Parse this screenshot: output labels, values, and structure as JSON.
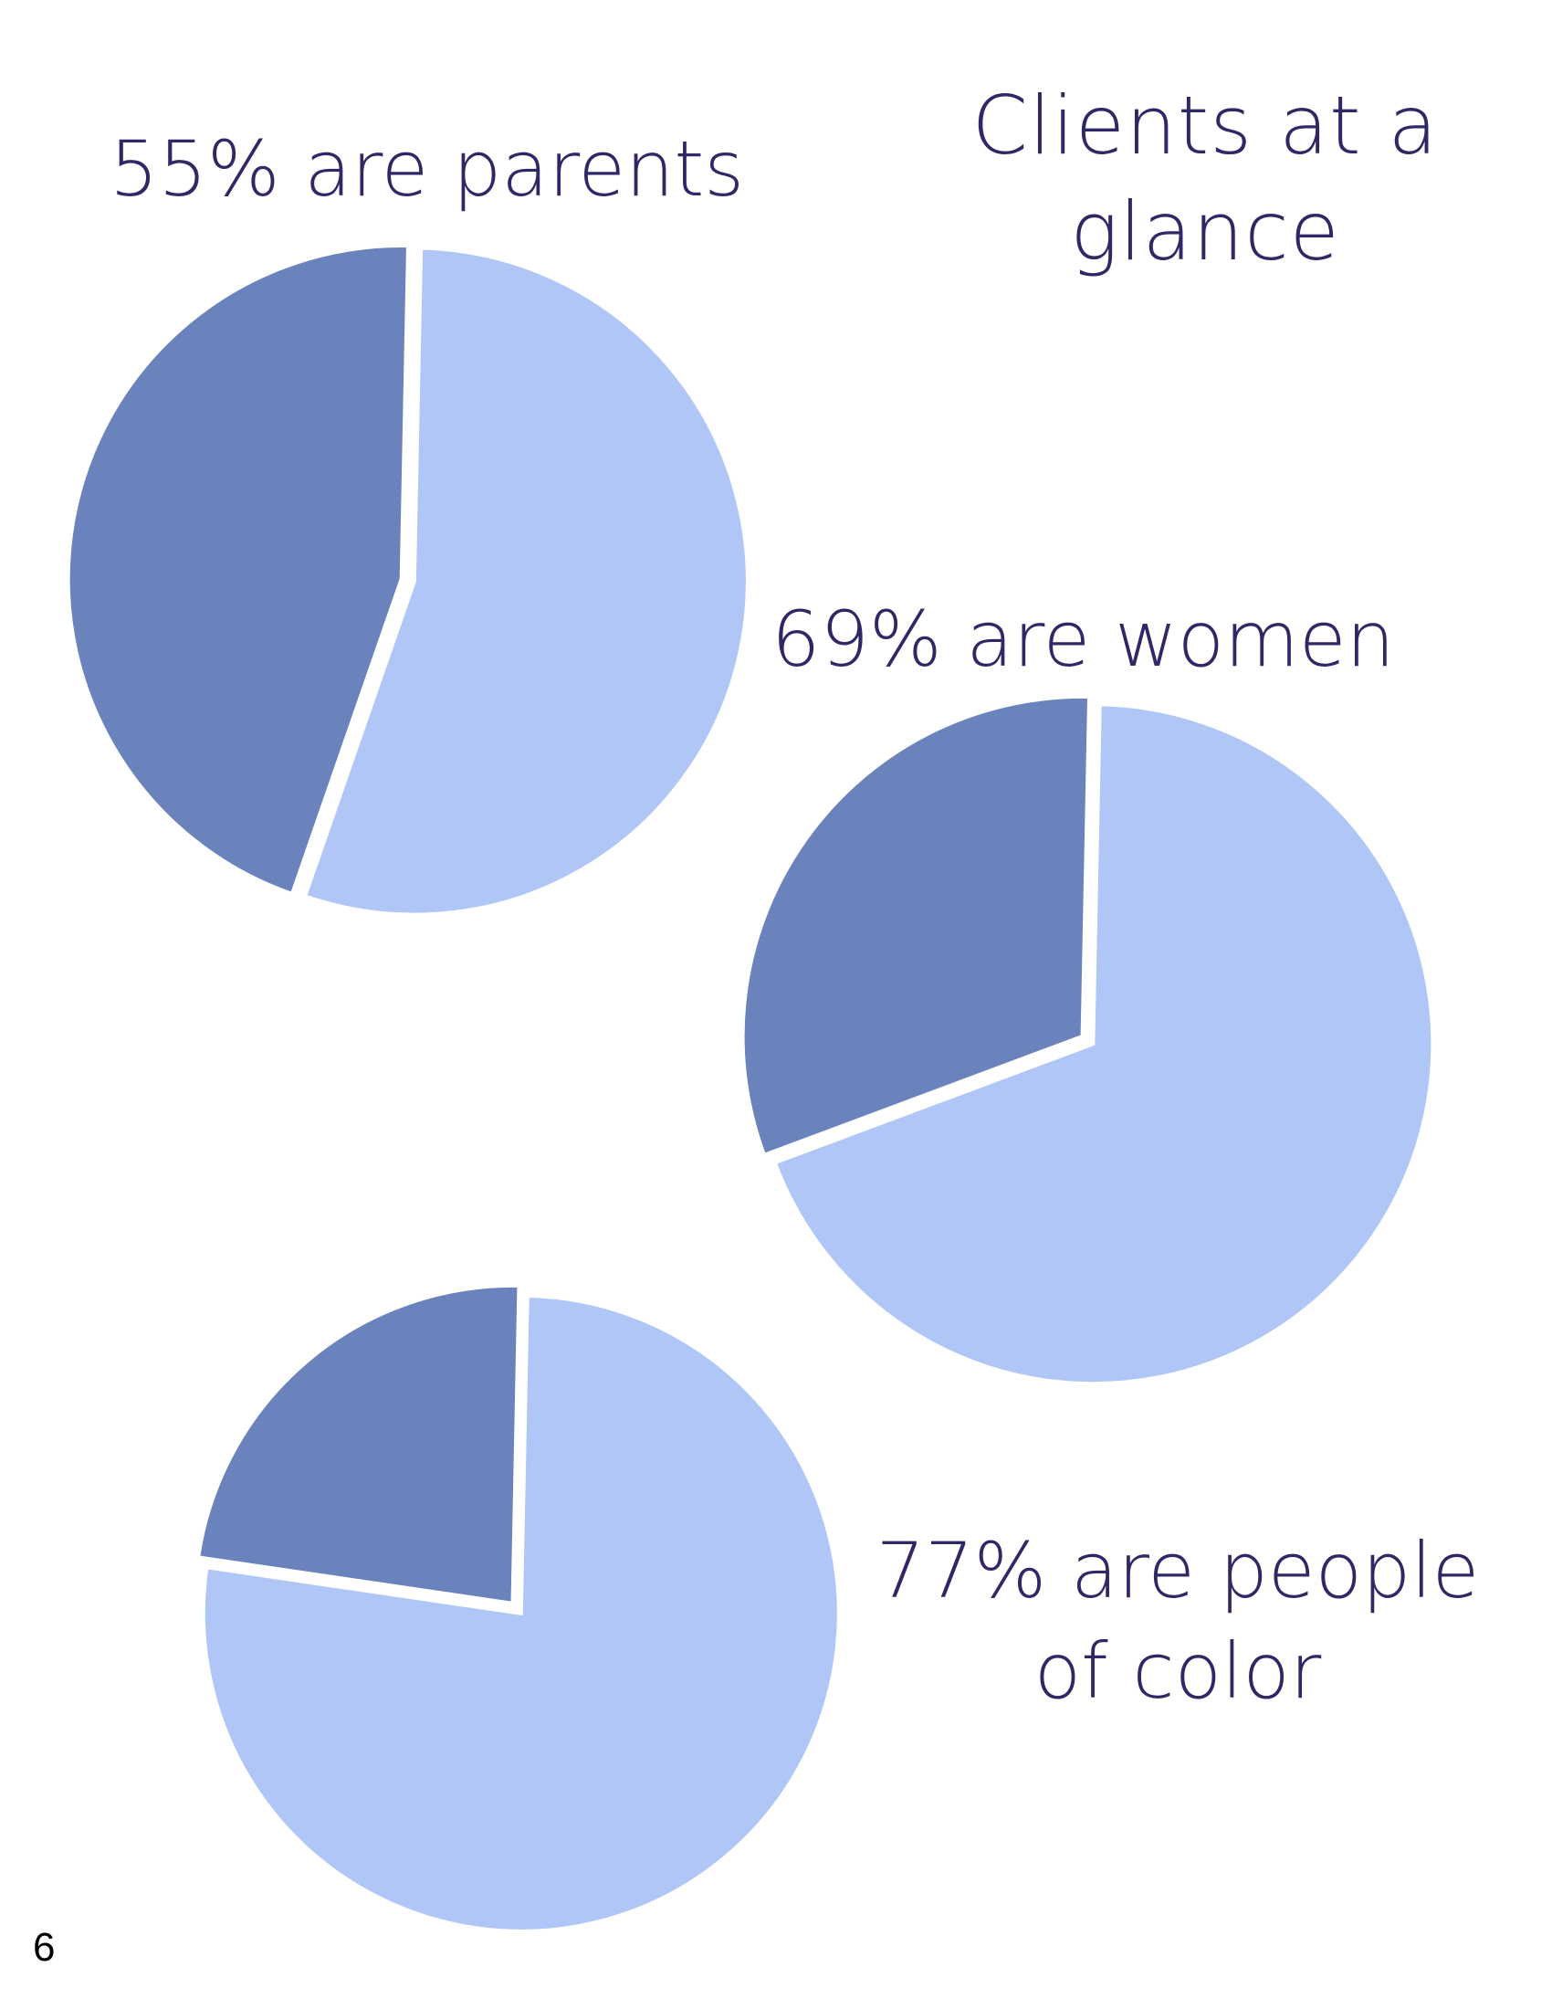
{
  "page": {
    "title": "Clients at a glance",
    "page_number": "6"
  },
  "colors": {
    "primary_slice": "#afc6f7",
    "secondary_slice": "#6b83bd",
    "text": "#2e2966"
  },
  "chart_data": [
    {
      "type": "pie",
      "title": "55% are parents",
      "values": [
        55,
        45
      ],
      "colors": [
        "#afc6f7",
        "#6b83bd"
      ]
    },
    {
      "type": "pie",
      "title": "69% are women",
      "values": [
        69,
        31
      ],
      "colors": [
        "#afc6f7",
        "#6b83bd"
      ]
    },
    {
      "type": "pie",
      "title": "77% are people of color",
      "values": [
        77,
        23
      ],
      "colors": [
        "#afc6f7",
        "#6b83bd"
      ]
    }
  ]
}
